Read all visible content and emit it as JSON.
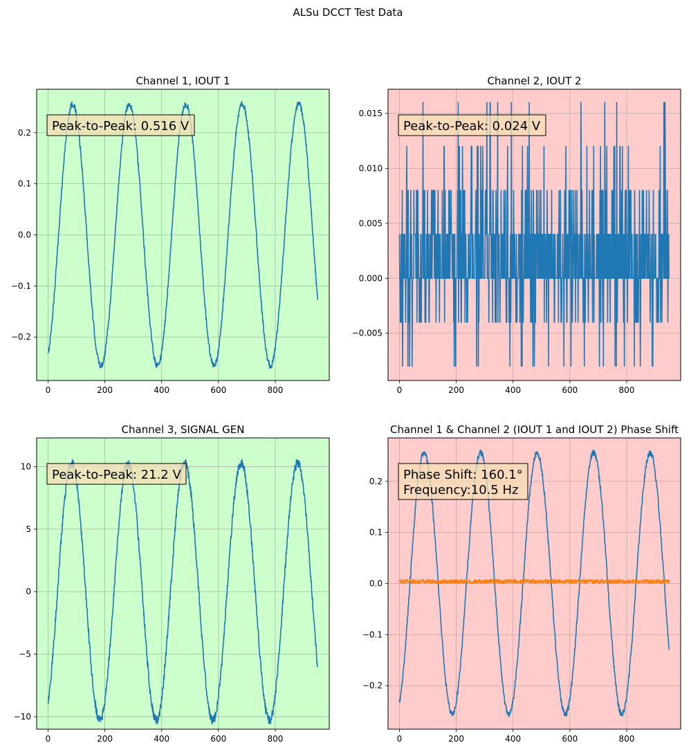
{
  "figure": {
    "suptitle": "ALSu DCCT Test Data",
    "colors": {
      "line_blue": "#1f77b4",
      "line_orange": "#ff7f0e",
      "bg_green": "#ccffcc",
      "bg_red": "#ffcccc",
      "annotation_fill": "#f5deb3",
      "grid": "#b0b0b0"
    }
  },
  "chart_data": [
    {
      "type": "line",
      "title": "Channel 1, IOUT 1",
      "background": "green",
      "xlim": [
        -40,
        990
      ],
      "ylim": [
        -0.285,
        0.285
      ],
      "xticks": [
        0,
        200,
        400,
        600,
        800
      ],
      "yticks": [
        -0.2,
        -0.1,
        0.0,
        0.1,
        0.2
      ],
      "ytick_labels": [
        "−0.2",
        "−0.1",
        "0.0",
        "0.1",
        "0.2"
      ],
      "grid": true,
      "annotation": [
        "Peak-to-Peak: 0.516 V"
      ],
      "series": [
        {
          "color": "blue",
          "wave": {
            "kind": "sine",
            "n": 950,
            "amplitude": 0.256,
            "period": 199,
            "phase_deg": -67,
            "noise": 0.006
          }
        }
      ]
    },
    {
      "type": "line",
      "title": "Channel 2, IOUT 2",
      "background": "red",
      "xlim": [
        -40,
        990
      ],
      "ylim": [
        -0.0093,
        0.0172
      ],
      "xticks": [
        0,
        200,
        400,
        600,
        800
      ],
      "yticks": [
        -0.005,
        0.0,
        0.005,
        0.01,
        0.015
      ],
      "ytick_labels": [
        "−0.005",
        "0.000",
        "0.005",
        "0.010",
        "0.015"
      ],
      "grid": true,
      "annotation": [
        "Peak-to-Peak: 0.024 V"
      ],
      "series": [
        {
          "color": "blue",
          "wave": {
            "kind": "quantized",
            "n": 950,
            "levels": [
              0.0,
              0.004,
              0.008,
              -0.004,
              0.012,
              -0.008,
              0.016
            ],
            "weights": [
              0.42,
              0.3,
              0.13,
              0.09,
              0.03,
              0.02,
              0.01
            ]
          }
        }
      ]
    },
    {
      "type": "line",
      "title": "Channel 3, SIGNAL GEN",
      "background": "green",
      "xlim": [
        -40,
        990
      ],
      "ylim": [
        -11.0,
        12.3
      ],
      "xticks": [
        0,
        200,
        400,
        600,
        800
      ],
      "yticks": [
        -10,
        -5,
        0,
        5,
        10
      ],
      "ytick_labels": [
        "−10",
        "−5",
        "0",
        "5",
        "10"
      ],
      "grid": true,
      "annotation": [
        "Peak-to-Peak: 21.2 V"
      ],
      "series": [
        {
          "color": "blue",
          "wave": {
            "kind": "sine",
            "n": 950,
            "amplitude": 10.3,
            "period": 199,
            "phase_deg": -60,
            "noise": 0.35
          }
        }
      ]
    },
    {
      "type": "line",
      "title": "Channel 1 & Channel 2 (IOUT 1 and IOUT 2) Phase Shift",
      "background": "red",
      "xlim": [
        -40,
        990
      ],
      "ylim": [
        -0.285,
        0.285
      ],
      "xticks": [
        0,
        200,
        400,
        600,
        800
      ],
      "yticks": [
        -0.2,
        -0.1,
        0.0,
        0.1,
        0.2
      ],
      "ytick_labels": [
        "−0.2",
        "−0.1",
        "0.0",
        "0.1",
        "0.2"
      ],
      "grid": true,
      "annotation": [
        "Phase Shift: 160.1°",
        "Frequency:10.5 Hz"
      ],
      "series": [
        {
          "color": "blue",
          "wave": {
            "kind": "sine",
            "n": 950,
            "amplitude": 0.256,
            "period": 199,
            "phase_deg": -67,
            "noise": 0.006
          }
        },
        {
          "color": "orange",
          "wave": {
            "kind": "noise",
            "n": 950,
            "center": 0.004,
            "spread": 0.004
          }
        }
      ]
    }
  ]
}
